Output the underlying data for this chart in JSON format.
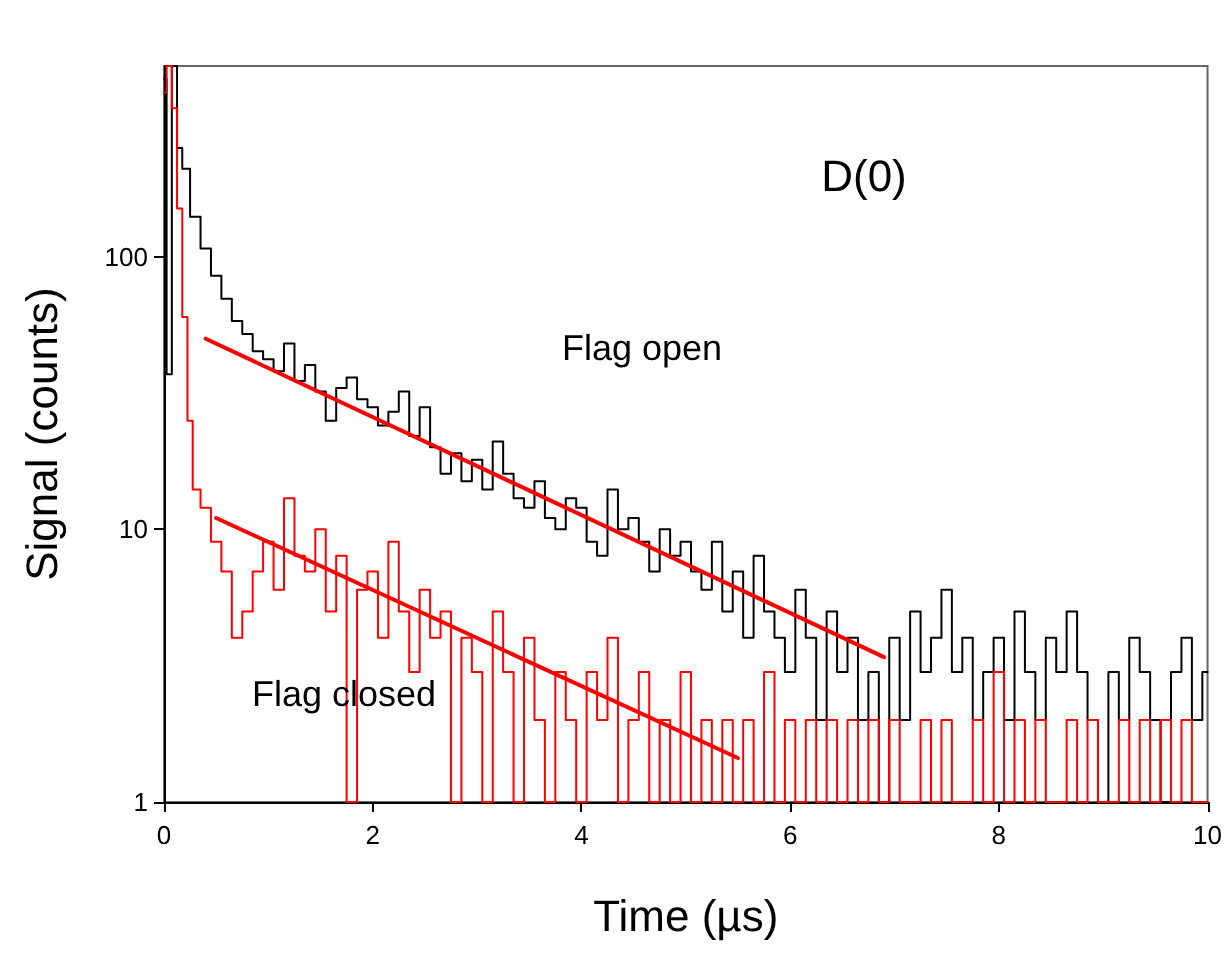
{
  "chart_data": {
    "type": "step",
    "xlabel": "Time (µs)",
    "ylabel": "Signal (counts)",
    "xlim": [
      0,
      10
    ],
    "xticks": [
      0,
      2,
      4,
      6,
      8,
      10
    ],
    "ylim": [
      1,
      500
    ],
    "yticks": [
      1,
      10,
      100
    ],
    "log": "y",
    "grid": false,
    "marker": "none",
    "annotations": [
      "D(0)",
      "Flag open",
      "Flag closed"
    ],
    "series": [
      {
        "color": "#000000",
        "x": [
          0,
          0.05,
          0.1,
          0.15,
          0.2,
          0.3,
          0.4,
          0.5,
          0.6,
          0.7,
          0.8,
          0.9,
          1.0,
          1.1,
          1.2,
          1.3,
          1.4,
          1.5,
          1.6,
          1.7,
          1.8,
          1.9,
          2.0,
          2.1,
          2.2,
          2.3,
          2.4,
          2.5,
          2.6,
          2.7,
          2.8,
          2.9,
          3.0,
          3.1,
          3.2,
          3.3,
          3.4,
          3.5,
          3.6,
          3.7,
          3.8,
          3.9,
          4.0,
          4.1,
          4.2,
          4.3,
          4.4,
          4.5,
          4.6,
          4.7,
          4.8,
          4.9,
          5.0,
          5.1,
          5.2,
          5.3,
          5.4,
          5.5,
          5.6,
          5.7,
          5.8,
          5.9,
          6.0,
          6.1,
          6.2,
          6.3,
          6.4,
          6.5,
          6.6,
          6.7,
          6.8,
          6.9,
          7.0,
          7.1,
          7.2,
          7.3,
          7.4,
          7.5,
          7.6,
          7.7,
          7.8,
          7.9,
          8.0,
          8.1,
          8.2,
          8.3,
          8.4,
          8.5,
          8.6,
          8.7,
          8.8,
          8.9,
          9.0,
          9.1,
          9.2,
          9.3,
          9.4,
          9.5,
          9.6,
          9.7,
          9.8,
          9.9,
          10.0
        ],
        "values": [
          450,
          37,
          500,
          250,
          210,
          140,
          107,
          85,
          70,
          58,
          52,
          45,
          42,
          38,
          48,
          35,
          40,
          32,
          25,
          33,
          36,
          30,
          28,
          24,
          27,
          32,
          22,
          28,
          20,
          16,
          19,
          15,
          18,
          14,
          21,
          16,
          13,
          12,
          15,
          11,
          10,
          13,
          12,
          9,
          8,
          14,
          10,
          11,
          9,
          7,
          10,
          8,
          9,
          7,
          6,
          9,
          5,
          7,
          4,
          8,
          5,
          4,
          3,
          6,
          4,
          2,
          5,
          3,
          4,
          2,
          3,
          1,
          4,
          2,
          5,
          3,
          4,
          6,
          3,
          4,
          2,
          3,
          4,
          2,
          5,
          3,
          2,
          4,
          3,
          5,
          3,
          2,
          1,
          3,
          2,
          4,
          3,
          2,
          1,
          3,
          4,
          2,
          3
        ]
      },
      {
        "color": "#ff0000",
        "x": [
          0,
          0.05,
          0.1,
          0.15,
          0.2,
          0.25,
          0.3,
          0.4,
          0.5,
          0.6,
          0.7,
          0.8,
          0.9,
          1.0,
          1.1,
          1.2,
          1.3,
          1.4,
          1.5,
          1.6,
          1.7,
          1.8,
          1.9,
          2.0,
          2.1,
          2.2,
          2.3,
          2.4,
          2.5,
          2.6,
          2.7,
          2.8,
          2.9,
          3.0,
          3.1,
          3.2,
          3.3,
          3.4,
          3.5,
          3.6,
          3.7,
          3.8,
          3.9,
          4.0,
          4.1,
          4.2,
          4.3,
          4.4,
          4.5,
          4.6,
          4.7,
          4.8,
          4.9,
          5.0,
          5.1,
          5.2,
          5.3,
          5.4,
          5.5,
          5.6,
          5.7,
          5.8,
          5.9,
          6.0,
          6.1,
          6.2,
          6.3,
          6.4,
          6.5,
          6.6,
          6.7,
          6.8,
          6.9,
          7.0,
          7.1,
          7.2,
          7.3,
          7.4,
          7.5,
          7.6,
          7.7,
          7.8,
          7.9,
          8.0,
          8.1,
          8.2,
          8.3,
          8.4,
          8.5,
          8.6,
          8.7,
          8.8,
          8.9,
          9.0,
          9.1,
          9.2,
          9.3,
          9.4,
          9.5,
          9.6,
          9.7,
          9.8,
          9.9,
          10.0
        ],
        "values": [
          400,
          500,
          350,
          150,
          60,
          25,
          14,
          12,
          9,
          7,
          4,
          5,
          7,
          9,
          6,
          13,
          8,
          7,
          10,
          5,
          8,
          1,
          6,
          7,
          4,
          9,
          5,
          3,
          6,
          4,
          5,
          1,
          4,
          3,
          1,
          5,
          3,
          1,
          4,
          2,
          1,
          3,
          2,
          1,
          3,
          2,
          4,
          1,
          2,
          3,
          1,
          2,
          1,
          3,
          1,
          2,
          1,
          2,
          1,
          2,
          1,
          3,
          1,
          2,
          1,
          2,
          1,
          2,
          1,
          2,
          1,
          2,
          1,
          2,
          1,
          1,
          2,
          1,
          2,
          1,
          1,
          2,
          1,
          3,
          1,
          2,
          1,
          2,
          1,
          1,
          2,
          1,
          2,
          1,
          1,
          2,
          1,
          2,
          1,
          2,
          1,
          2,
          1,
          1
        ]
      },
      {
        "type": "line",
        "color": "#ff0000",
        "x": [
          0.4,
          6.9
        ],
        "values": [
          50,
          3.4
        ]
      },
      {
        "type": "line",
        "color": "#ff0000",
        "x": [
          0.5,
          5.5
        ],
        "values": [
          11,
          1.45
        ]
      }
    ]
  }
}
